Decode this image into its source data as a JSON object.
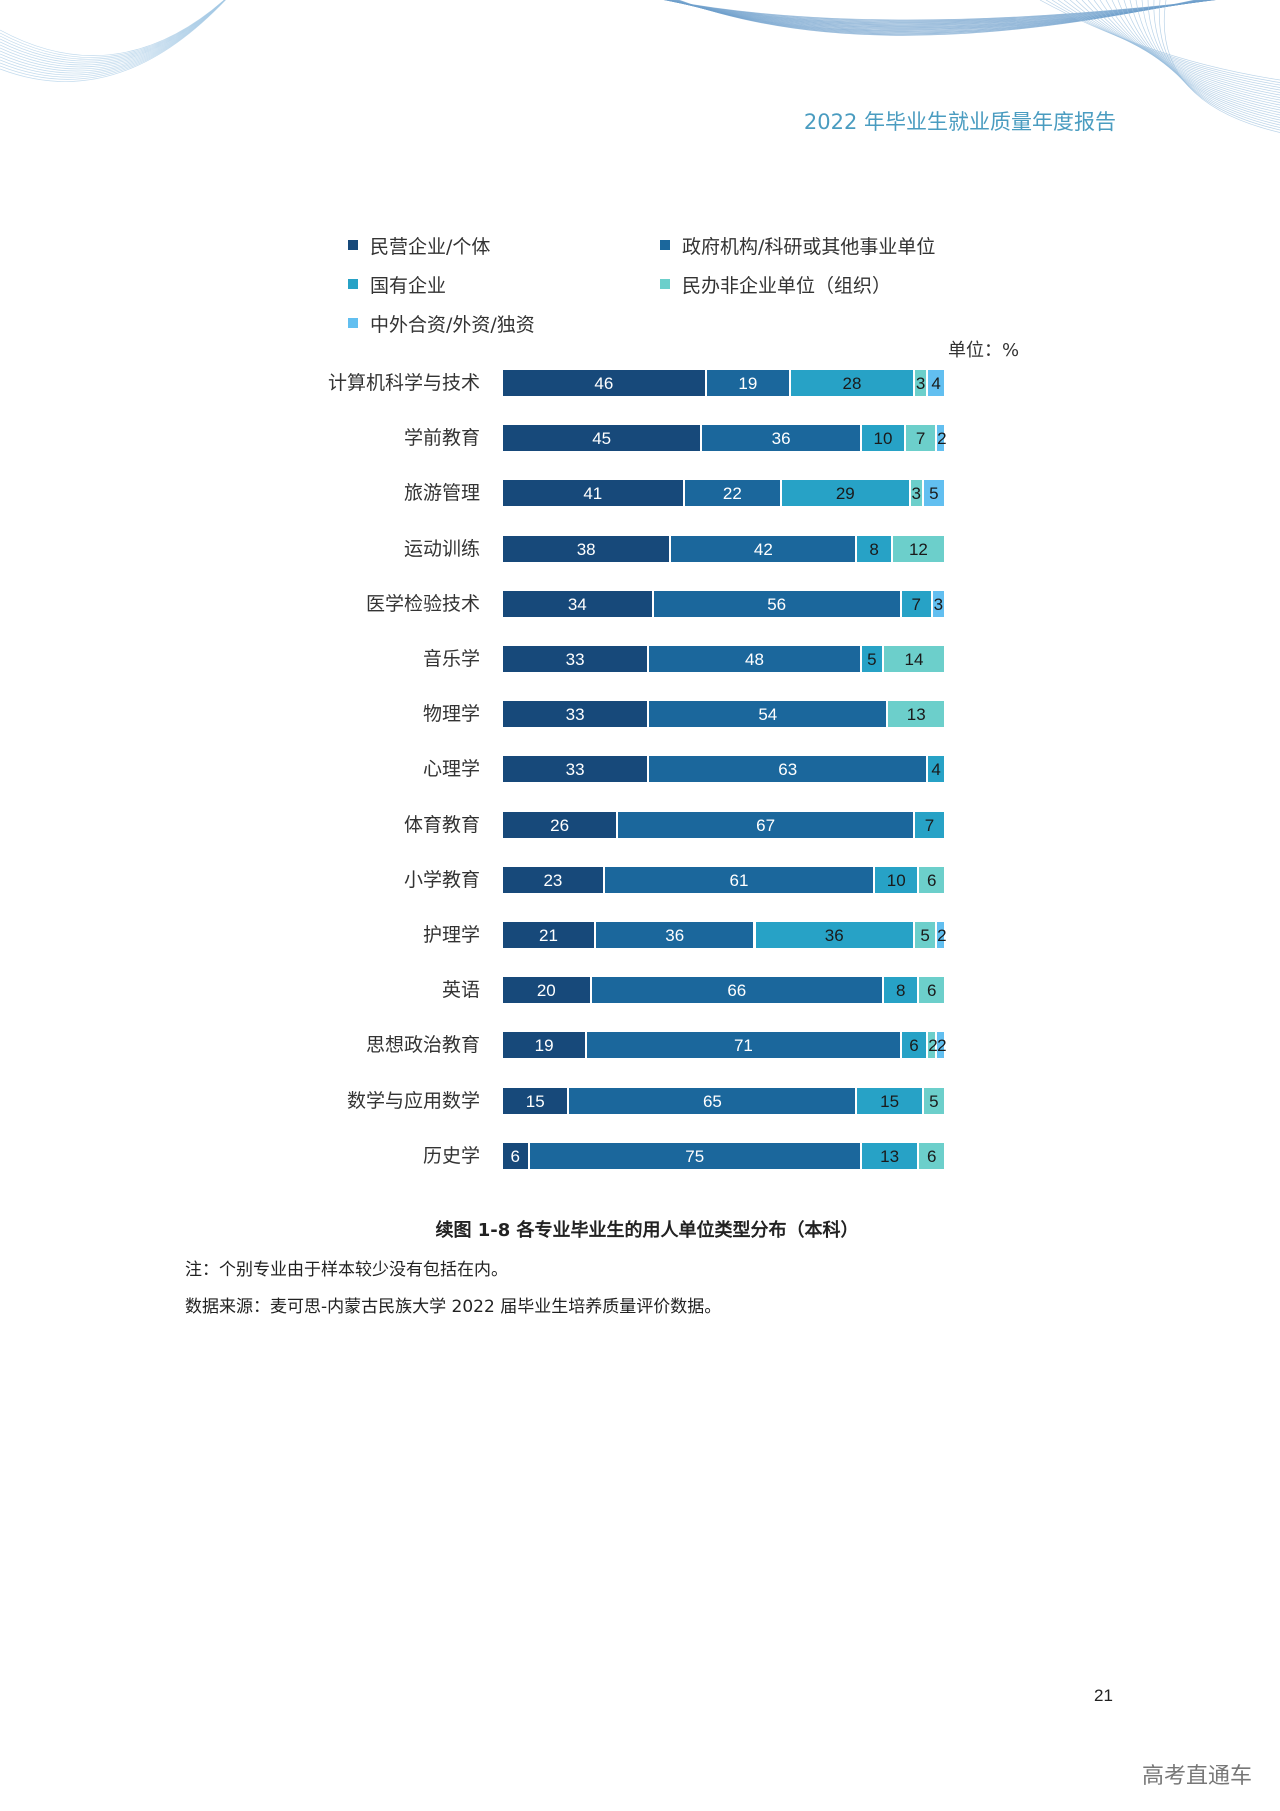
{
  "header": {
    "title": "2022 年毕业生就业质量年度报告"
  },
  "chart_data": {
    "type": "bar",
    "orientation": "horizontal",
    "stacked": true,
    "unit_label": "单位：%",
    "categories": [
      "计算机科学与技术",
      "学前教育",
      "旅游管理",
      "运动训练",
      "医学检验技术",
      "音乐学",
      "物理学",
      "心理学",
      "体育教育",
      "小学教育",
      "护理学",
      "英语",
      "思想政治教育",
      "数学与应用数学",
      "历史学"
    ],
    "series": [
      {
        "name": "民营企业/个体",
        "color": "#17497a",
        "text_color": "#ffffff",
        "values": [
          46,
          45,
          41,
          38,
          34,
          33,
          33,
          33,
          26,
          23,
          21,
          20,
          19,
          15,
          6
        ]
      },
      {
        "name": "政府机构/科研或其他事业单位",
        "color": "#1b679c",
        "text_color": "#ffffff",
        "values": [
          19,
          36,
          22,
          42,
          56,
          48,
          54,
          63,
          67,
          61,
          36,
          66,
          71,
          65,
          75
        ]
      },
      {
        "name": "国有企业",
        "color": "#27a2c6",
        "text_color": "#1a1a1a",
        "values": [
          28,
          10,
          29,
          8,
          7,
          5,
          null,
          4,
          7,
          10,
          36,
          8,
          6,
          15,
          13
        ]
      },
      {
        "name": "民办非企业单位（组织）",
        "color": "#6ccfcb",
        "text_color": "#1a1a1a",
        "values": [
          3,
          7,
          3,
          12,
          null,
          14,
          13,
          null,
          null,
          6,
          5,
          6,
          2,
          5,
          6
        ]
      },
      {
        "name": "中外合资/外资/独资",
        "color": "#62bff0",
        "text_color": "#1a1a1a",
        "values": [
          4,
          2,
          5,
          null,
          3,
          null,
          null,
          null,
          null,
          null,
          2,
          null,
          2,
          null,
          null
        ]
      }
    ],
    "xlim": [
      0,
      100
    ],
    "grid": false,
    "legend_position": "top"
  },
  "caption": "续图 1-8 各专业毕业生的用人单位类型分布（本科）",
  "note": "注：个别专业由于样本较少没有包括在内。",
  "source": "数据来源：麦可思-内蒙古民族大学 2022 届毕业生培养质量评价数据。",
  "page_number": "21",
  "watermark": "高考直通车"
}
